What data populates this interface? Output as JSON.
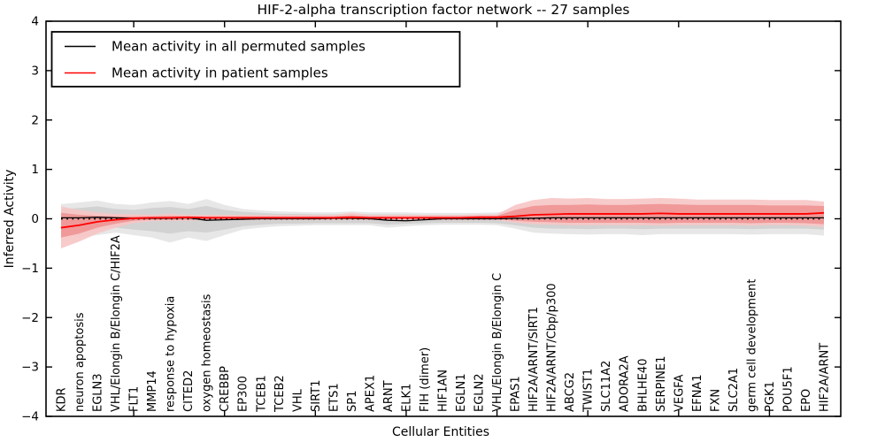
{
  "chart_data": {
    "type": "line",
    "title": "HIF-2-alpha transcription factor network -- 27 samples",
    "xlabel": "Cellular Entities",
    "ylabel": "Inferred Activity",
    "ylim": [
      -4,
      4
    ],
    "ytick_values": [
      4,
      3,
      2,
      1,
      0,
      -1,
      -2,
      -3,
      -4
    ],
    "ytick_labels": [
      "4",
      "3",
      "2",
      "1",
      "0",
      "−1",
      "−2",
      "−3",
      "−4"
    ],
    "grid": false,
    "zero_line": true,
    "legend_position": "upper left",
    "categories": [
      "KDR",
      "neuron apoptosis",
      "EGLN3",
      "VHL/Elongin B/Elongin C/HIF2A",
      "FLT1",
      "MMP14",
      "response to hypoxia",
      "CITED2",
      "oxygen homeostasis",
      "CREBBP",
      "EP300",
      "TCEB1",
      "TCEB2",
      "VHL",
      "SIRT1",
      "ETS1",
      "SP1",
      "APEX1",
      "ARNT",
      "ELK1",
      "FIH (dimer)",
      "HIF1AN",
      "EGLN1",
      "EGLN2",
      "VHL/Elongin B/Elongin C",
      "EPAS1",
      "HIF2A/ARNT/SIRT1",
      "HIF2A/ARNT/Cbp/p300",
      "ABCG2",
      "TWIST1",
      "SLC11A2",
      "ADORA2A",
      "BHLHE40",
      "SERPINE1",
      "VEGFA",
      "EFNA1",
      "FXN",
      "SLC2A1",
      "germ cell development",
      "PGK1",
      "POU5F1",
      "EPO",
      "HIF2A/ARNT"
    ],
    "series": [
      {
        "name": "Mean activity in all permuted samples",
        "color": "#000000",
        "band_inner_color": "#d2d2d2",
        "band_outer_color": "#e7e7e7",
        "values": [
          0.02,
          0.02,
          0.03,
          0.02,
          0.01,
          0.01,
          0.01,
          0.02,
          -0.03,
          -0.02,
          -0.01,
          0,
          0,
          0,
          0,
          0.01,
          0.01,
          0,
          -0.03,
          -0.04,
          -0.02,
          0,
          0,
          0,
          0,
          0.01,
          0.01,
          0.02,
          0.02,
          0.02,
          0.02,
          0.02,
          0.02,
          0.02,
          0.02,
          0.02,
          0.02,
          0.02,
          0.02,
          0.02,
          0.02,
          0.02,
          0.02
        ],
        "band_inner_low": [
          -0.2,
          -0.25,
          -0.22,
          -0.18,
          -0.22,
          -0.25,
          -0.3,
          -0.25,
          -0.28,
          -0.22,
          -0.15,
          -0.12,
          -0.1,
          -0.1,
          -0.09,
          -0.09,
          -0.09,
          -0.09,
          -0.12,
          -0.1,
          -0.09,
          -0.08,
          -0.08,
          -0.08,
          -0.09,
          -0.13,
          -0.18,
          -0.2,
          -0.2,
          -0.21,
          -0.2,
          -0.2,
          -0.21,
          -0.2,
          -0.2,
          -0.2,
          -0.2,
          -0.2,
          -0.21,
          -0.2,
          -0.2,
          -0.2,
          -0.22
        ],
        "band_inner_high": [
          0.2,
          0.22,
          0.25,
          0.2,
          0.18,
          0.22,
          0.24,
          0.2,
          0.26,
          0.18,
          0.14,
          0.12,
          0.1,
          0.1,
          0.09,
          0.09,
          0.1,
          0.09,
          0.09,
          0.09,
          0.08,
          0.08,
          0.08,
          0.08,
          0.09,
          0.12,
          0.14,
          0.15,
          0.15,
          0.15,
          0.15,
          0.15,
          0.16,
          0.15,
          0.15,
          0.15,
          0.15,
          0.15,
          0.15,
          0.15,
          0.15,
          0.15,
          0.16
        ],
        "band_outer_low": [
          -0.3,
          -0.38,
          -0.33,
          -0.28,
          -0.33,
          -0.38,
          -0.48,
          -0.38,
          -0.45,
          -0.33,
          -0.22,
          -0.18,
          -0.15,
          -0.14,
          -0.13,
          -0.13,
          -0.13,
          -0.13,
          -0.18,
          -0.15,
          -0.13,
          -0.12,
          -0.12,
          -0.12,
          -0.13,
          -0.2,
          -0.28,
          -0.3,
          -0.31,
          -0.32,
          -0.31,
          -0.31,
          -0.33,
          -0.31,
          -0.31,
          -0.31,
          -0.31,
          -0.31,
          -0.32,
          -0.31,
          -0.31,
          -0.31,
          -0.34
        ],
        "band_outer_high": [
          0.3,
          0.33,
          0.37,
          0.3,
          0.28,
          0.33,
          0.36,
          0.3,
          0.4,
          0.28,
          0.2,
          0.17,
          0.15,
          0.14,
          0.13,
          0.13,
          0.15,
          0.13,
          0.13,
          0.13,
          0.12,
          0.12,
          0.12,
          0.12,
          0.13,
          0.18,
          0.21,
          0.22,
          0.22,
          0.22,
          0.22,
          0.22,
          0.23,
          0.22,
          0.22,
          0.22,
          0.22,
          0.22,
          0.22,
          0.22,
          0.22,
          0.22,
          0.24
        ]
      },
      {
        "name": "Mean activity in patient samples",
        "color": "#ff0000",
        "band_inner_color": "#ef9494",
        "band_outer_color": "#f7c5c5",
        "values": [
          -0.18,
          -0.13,
          -0.06,
          -0.02,
          0.01,
          0.02,
          0.02,
          0.03,
          0.02,
          0.02,
          0.02,
          0.02,
          0.02,
          0.02,
          0.02,
          0.02,
          0.03,
          0.02,
          0.02,
          0.02,
          0.02,
          0.02,
          0.02,
          0.03,
          0.03,
          0.05,
          0.08,
          0.09,
          0.1,
          0.1,
          0.1,
          0.1,
          0.1,
          0.11,
          0.1,
          0.1,
          0.1,
          0.1,
          0.1,
          0.1,
          0.1,
          0.1,
          0.12
        ],
        "band_inner_low": [
          -0.38,
          -0.3,
          -0.18,
          -0.1,
          -0.04,
          -0.02,
          -0.02,
          -0.02,
          -0.01,
          -0.01,
          -0.01,
          -0.01,
          -0.01,
          -0.01,
          -0.01,
          -0.01,
          -0.01,
          -0.01,
          -0.01,
          -0.01,
          -0.01,
          -0.01,
          -0.01,
          -0.01,
          -0.01,
          -0.04,
          -0.06,
          -0.07,
          -0.08,
          -0.08,
          -0.08,
          -0.08,
          -0.08,
          -0.09,
          -0.08,
          -0.08,
          -0.08,
          -0.08,
          -0.09,
          -0.08,
          -0.08,
          -0.09,
          -0.11
        ],
        "band_inner_high": [
          0.12,
          0.08,
          0.06,
          0.05,
          0.05,
          0.05,
          0.06,
          0.05,
          0.05,
          0.05,
          0.05,
          0.05,
          0.05,
          0.05,
          0.05,
          0.05,
          0.07,
          0.05,
          0.05,
          0.05,
          0.05,
          0.05,
          0.05,
          0.06,
          0.06,
          0.18,
          0.26,
          0.28,
          0.28,
          0.29,
          0.28,
          0.28,
          0.29,
          0.3,
          0.29,
          0.28,
          0.28,
          0.28,
          0.28,
          0.27,
          0.27,
          0.27,
          0.26
        ],
        "band_outer_low": [
          -0.6,
          -0.46,
          -0.3,
          -0.18,
          -0.09,
          -0.05,
          -0.04,
          -0.04,
          -0.03,
          -0.03,
          -0.03,
          -0.03,
          -0.03,
          -0.03,
          -0.03,
          -0.03,
          -0.03,
          -0.03,
          -0.03,
          -0.03,
          -0.03,
          -0.03,
          -0.03,
          -0.03,
          -0.03,
          -0.08,
          -0.11,
          -0.12,
          -0.13,
          -0.13,
          -0.13,
          -0.13,
          -0.13,
          -0.14,
          -0.13,
          -0.13,
          -0.13,
          -0.13,
          -0.14,
          -0.13,
          -0.13,
          -0.14,
          -0.17
        ],
        "band_outer_high": [
          0.25,
          0.18,
          0.13,
          0.1,
          0.09,
          0.08,
          0.1,
          0.08,
          0.08,
          0.08,
          0.08,
          0.08,
          0.08,
          0.08,
          0.08,
          0.08,
          0.12,
          0.08,
          0.08,
          0.08,
          0.08,
          0.08,
          0.08,
          0.09,
          0.09,
          0.28,
          0.38,
          0.42,
          0.41,
          0.42,
          0.4,
          0.4,
          0.41,
          0.42,
          0.41,
          0.39,
          0.39,
          0.39,
          0.39,
          0.38,
          0.38,
          0.38,
          0.35
        ]
      }
    ]
  }
}
